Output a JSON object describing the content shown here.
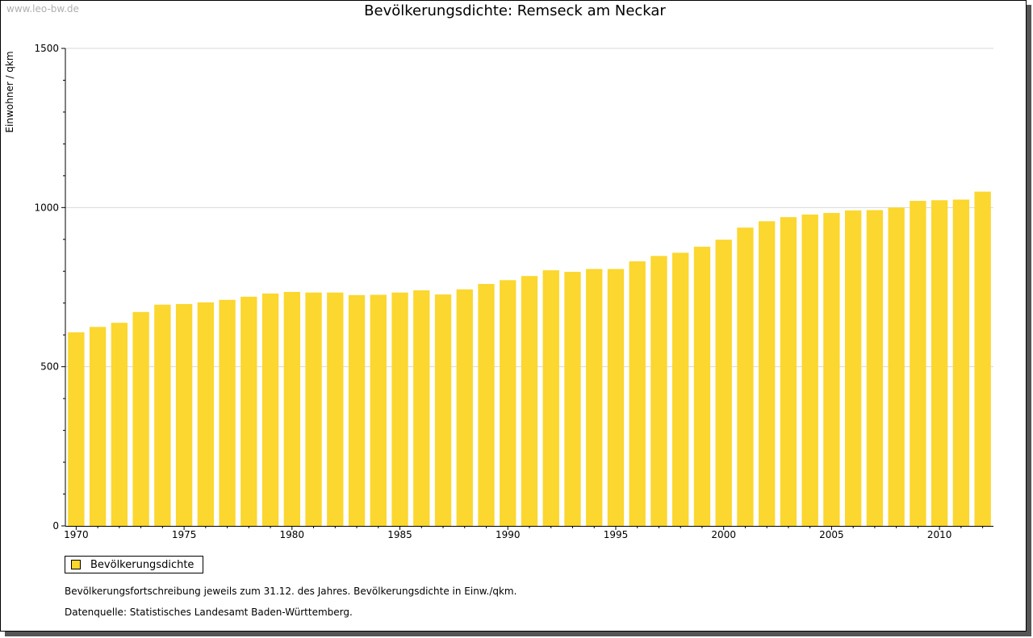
{
  "watermark": "www.leo-bw.de",
  "colors": {
    "bar": "#FBD72F",
    "grid": "#d9d9d9",
    "axis": "#000000"
  },
  "chart_data": {
    "type": "bar",
    "title": "Bevölkerungsdichte: Remseck am Neckar",
    "xlabel": "",
    "ylabel": "Einwohner / qkm",
    "ylim": [
      0,
      1500
    ],
    "yticks": [
      0,
      500,
      1000,
      1500
    ],
    "xticks": [
      1970,
      1975,
      1980,
      1985,
      1990,
      1995,
      2000,
      2005,
      2010
    ],
    "grid": true,
    "legend_position": "bottom-left",
    "categories": [
      1970,
      1971,
      1972,
      1973,
      1974,
      1975,
      1976,
      1977,
      1978,
      1979,
      1980,
      1981,
      1982,
      1983,
      1984,
      1985,
      1986,
      1987,
      1988,
      1989,
      1990,
      1991,
      1992,
      1993,
      1994,
      1995,
      1996,
      1997,
      1998,
      1999,
      2000,
      2001,
      2002,
      2003,
      2004,
      2005,
      2006,
      2007,
      2008,
      2009,
      2010,
      2011,
      2012
    ],
    "series": [
      {
        "name": "Bevölkerungsdichte",
        "values": [
          608,
          625,
          638,
          672,
          695,
          697,
          702,
          710,
          720,
          730,
          735,
          733,
          733,
          725,
          726,
          733,
          740,
          727,
          743,
          760,
          772,
          785,
          803,
          798,
          807,
          807,
          831,
          848,
          858,
          877,
          899,
          937,
          957,
          970,
          978,
          983,
          991,
          992,
          1000,
          1021,
          1023,
          1025,
          1050
        ]
      }
    ]
  },
  "legend": {
    "label": "Bevölkerungsdichte"
  },
  "notes": {
    "line1": "Bevölkerungsfortschreibung jeweils zum 31.12. des Jahres. Bevölkerungsdichte in Einw./qkm.",
    "line2": "Datenquelle: Statistisches Landesamt Baden-Württemberg."
  }
}
